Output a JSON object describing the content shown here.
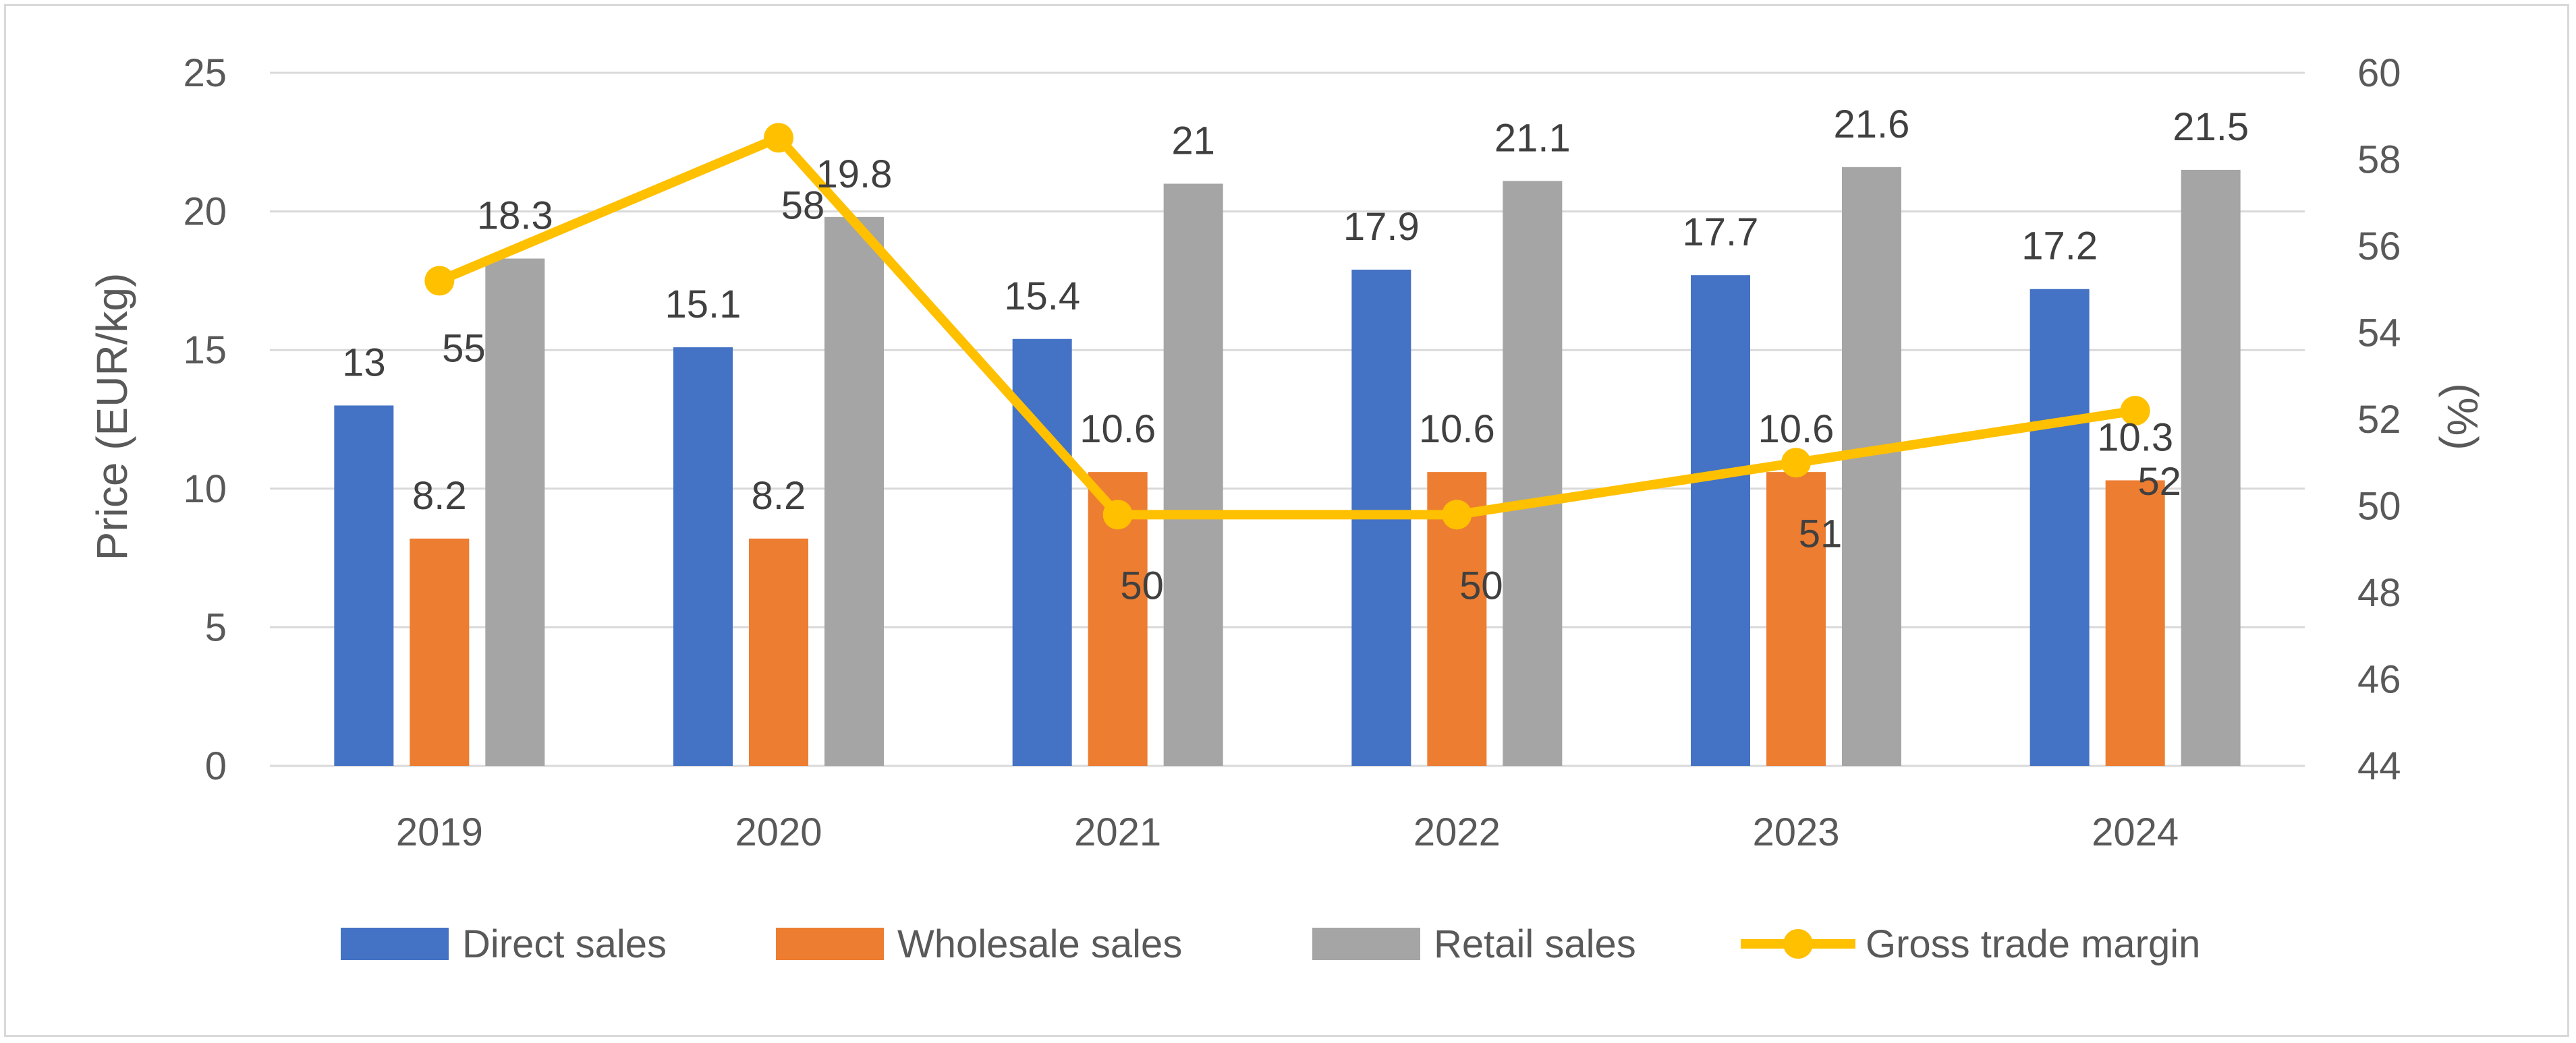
{
  "chart_data": {
    "type": "bar",
    "categories": [
      "2019",
      "2020",
      "2021",
      "2022",
      "2023",
      "2024"
    ],
    "series": [
      {
        "name": "Direct sales",
        "values": [
          13,
          15.1,
          15.4,
          17.9,
          17.7,
          17.2
        ],
        "color": "#4472c4",
        "axis": "left"
      },
      {
        "name": "Wholesale sales",
        "values": [
          8.2,
          8.2,
          10.6,
          10.6,
          10.6,
          10.3
        ],
        "color": "#ed7d31",
        "axis": "left"
      },
      {
        "name": "Retail sales",
        "values": [
          18.3,
          19.8,
          21,
          21.1,
          21.6,
          21.5
        ],
        "color": "#a5a5a5",
        "axis": "left"
      }
    ],
    "line_series": {
      "name": "Gross trade margin",
      "values": [
        55.2,
        58.5,
        49.8,
        49.8,
        51,
        52.2
      ],
      "data_labels": [
        "55",
        "58",
        "50",
        "50",
        "51",
        "52"
      ],
      "color": "#ffc000",
      "axis": "right"
    },
    "y_left": {
      "label": "Price (EUR/kg)",
      "min": 0,
      "max": 25,
      "ticks": [
        "0",
        "5",
        "10",
        "15",
        "20",
        "25"
      ]
    },
    "y_right": {
      "label": "(%)",
      "min": 44,
      "max": 60,
      "ticks": [
        "44",
        "46",
        "48",
        "50",
        "52",
        "54",
        "56",
        "58",
        "60"
      ]
    },
    "grid": true,
    "legend": "bottom"
  },
  "colors": {
    "gridline": "#d9d9d9",
    "text": "#595959"
  }
}
